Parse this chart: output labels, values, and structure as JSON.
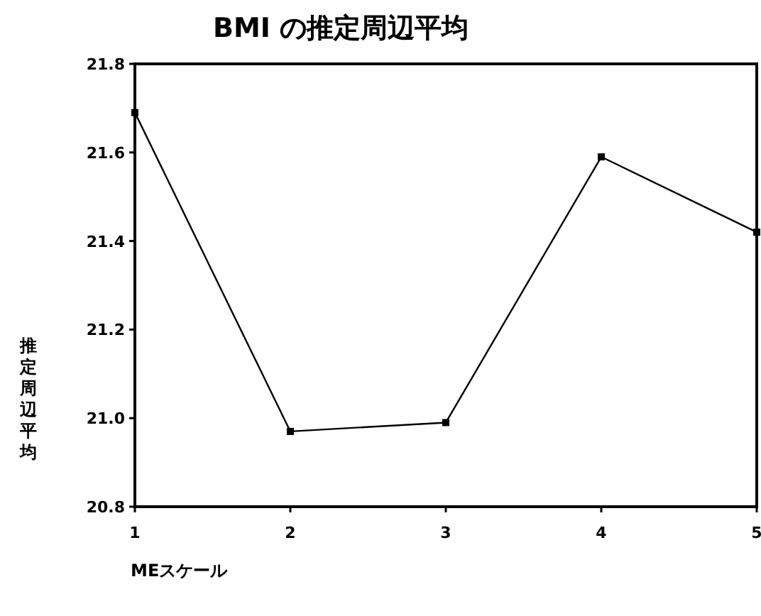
{
  "chart_data": {
    "type": "line",
    "title": "BMI の推定周辺平均",
    "xlabel": "MEスケール",
    "ylabel": "推定周辺平均",
    "x": [
      1,
      2,
      3,
      4,
      5
    ],
    "series": [
      {
        "color": "#000000",
        "values": [
          21.69,
          20.97,
          20.99,
          21.59,
          21.42
        ]
      }
    ],
    "xlim": [
      1,
      5
    ],
    "xticks": [
      1,
      2,
      3,
      4,
      5
    ],
    "ylim": [
      20.8,
      21.8
    ],
    "yticks": [
      {
        "value": 20.8,
        "label": "20.8"
      },
      {
        "value": 21.0,
        "label": "21.0"
      },
      {
        "value": 21.2,
        "label": "21.2"
      },
      {
        "value": 21.4,
        "label": "21.4"
      },
      {
        "value": 21.6,
        "label": "21.6"
      },
      {
        "value": 21.8,
        "label": "21.8"
      }
    ],
    "marker": "square",
    "line_style": "solid",
    "grid": false
  }
}
